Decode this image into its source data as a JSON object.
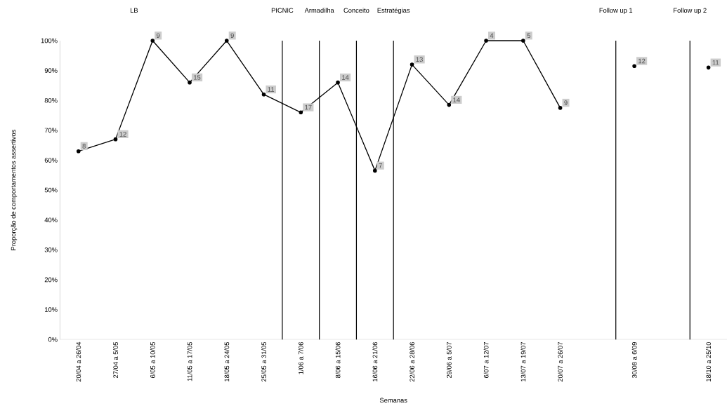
{
  "chart_data": {
    "type": "line",
    "xlabel": "Semanas",
    "ylabel": "Proporção de comportamentos assertivos",
    "categories": [
      "20/04 a 26/04",
      "27/04 a 5/05",
      "6/05 a 10/05",
      "11/05 a 17/05",
      "18/05 a 24/05",
      "25/05 a 31/05",
      "1/06 a 7/06",
      "8/06 a 15/06",
      "16/06 a 21/06",
      "22/06 a 28/06",
      "29/06 a 5/07",
      "6/07 a 12/07",
      "13/07 a 19/07",
      "20/07 a 26/07",
      null,
      "30/08 a 6/09",
      null,
      "18/10 a 25/10"
    ],
    "series": [
      {
        "color": "#000000",
        "values": [
          63,
          67,
          100,
          86,
          100,
          82,
          76,
          86,
          56.5,
          92,
          78.5,
          100,
          100,
          77.5,
          null,
          91.5,
          null,
          91
        ]
      }
    ],
    "value_labels": [
      "8",
      "12",
      "9",
      "15",
      "9",
      "11",
      "17",
      "14",
      "7",
      "13",
      "14",
      "4",
      "5",
      "9",
      null,
      "12",
      null,
      "11"
    ],
    "ylim": [
      0,
      100
    ],
    "yticks": [
      {
        "value": 0,
        "label": "0%"
      },
      {
        "value": 10,
        "label": "10%"
      },
      {
        "value": 20,
        "label": "20%"
      },
      {
        "value": 30,
        "label": "30%"
      },
      {
        "value": 40,
        "label": "40%"
      },
      {
        "value": 50,
        "label": "50%"
      },
      {
        "value": 60,
        "label": "60%"
      },
      {
        "value": 70,
        "label": "70%"
      },
      {
        "value": 80,
        "label": "80%"
      },
      {
        "value": 90,
        "label": "90%"
      },
      {
        "value": 100,
        "label": "100%"
      }
    ],
    "annotations": [
      "LB",
      "PICNIC",
      "Armadilha",
      "Conceito",
      "Estratégias",
      "Follow up 1",
      "Follow up 2"
    ],
    "marker": "circle",
    "line_style": "solid"
  }
}
